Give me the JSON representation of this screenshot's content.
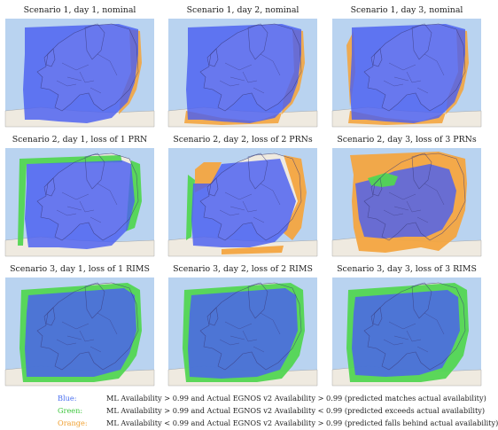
{
  "panels": [
    {
      "title": "Scenario 1, day 1, nominal",
      "variant": "nominal"
    },
    {
      "title": "Scenario 1, day 2, nominal",
      "variant": "nominal2"
    },
    {
      "title": "Scenario 1, day 3, nominal",
      "variant": "nominal3"
    },
    {
      "title": "Scenario 2, day 1, loss of 1 PRN",
      "variant": "prn1"
    },
    {
      "title": "Scenario 2, day 2, loss of 2 PRNs",
      "variant": "prn2"
    },
    {
      "title": "Scenario 2, day 3, loss of 3 PRNs",
      "variant": "prn3"
    },
    {
      "title": "Scenario 3, day 1, loss of 1 RIMS",
      "variant": "rims1"
    },
    {
      "title": "Scenario 3, day 2, loss of 2 RIMS",
      "variant": "rims2"
    },
    {
      "title": "Scenario 3, day 3, loss of 3 RIMS",
      "variant": "rims3"
    }
  ],
  "legend": [
    {
      "key": "Blue:",
      "color": "#4a6ff0",
      "text": "ML Availability > 0.99 and Actual EGNOS v2 Availability > 0.99 (predicted matches actual availability)"
    },
    {
      "key": "Green:",
      "color": "#3dc63d",
      "text": "ML Availability > 0.99 and Actual EGNOS v2 Availability < 0.99 (predicted exceeds actual availability)"
    },
    {
      "key": "Orange:",
      "color": "#f0a030",
      "text": "ML Availability < 0.99 and Actual EGNOS v2 Availability > 0.99 (predicted falls behind actual availability)"
    }
  ],
  "colors": {
    "sea": "#b9d3f0",
    "land": "#efeae0",
    "blue": "#4a5ff0",
    "green": "#52d652",
    "orange": "#f3a540",
    "border": "#3a3a7a"
  }
}
